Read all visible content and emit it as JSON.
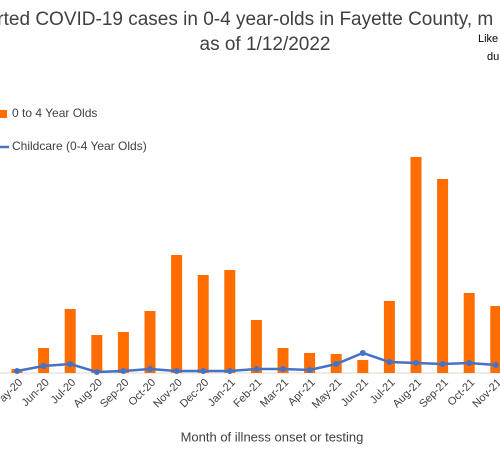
{
  "chart_data": {
    "type": "bar",
    "title": "orted COVID-19 cases in 0-4 year-olds in Fayette County, m",
    "subtitle": "as of 1/12/2022",
    "annotations": [
      "Like",
      "du"
    ],
    "x_label": "Month of illness onset or testing",
    "categories": [
      "ay-20",
      "Jun-20",
      "Jul-20",
      "Aug-20",
      "Sep-20",
      "Oct-20",
      "Nov-20",
      "Dec-20",
      "Jan-21",
      "Feb-21",
      "Mar-21",
      "Apr-21",
      "May-21",
      "Jun-21",
      "Jul-21",
      "Aug-21",
      "Sep-21",
      "Oct-21",
      "Nov-21"
    ],
    "ylim": [
      0,
      220
    ],
    "series": [
      {
        "name": "0 to 4 Year Olds",
        "color": "#ff6d00",
        "type": "bar",
        "values": [
          4,
          25,
          64,
          38,
          41,
          62,
          118,
          98,
          103,
          53,
          25,
          20,
          19,
          13,
          72,
          216,
          194,
          80,
          67
        ]
      },
      {
        "name": "Childcare (0-4 Year Olds)",
        "color": "#4472c4",
        "type": "line",
        "values": [
          2,
          7,
          9,
          1,
          2,
          4,
          2,
          2,
          2,
          4,
          4,
          3,
          9,
          20,
          11,
          10,
          9,
          10,
          8
        ]
      }
    ]
  }
}
